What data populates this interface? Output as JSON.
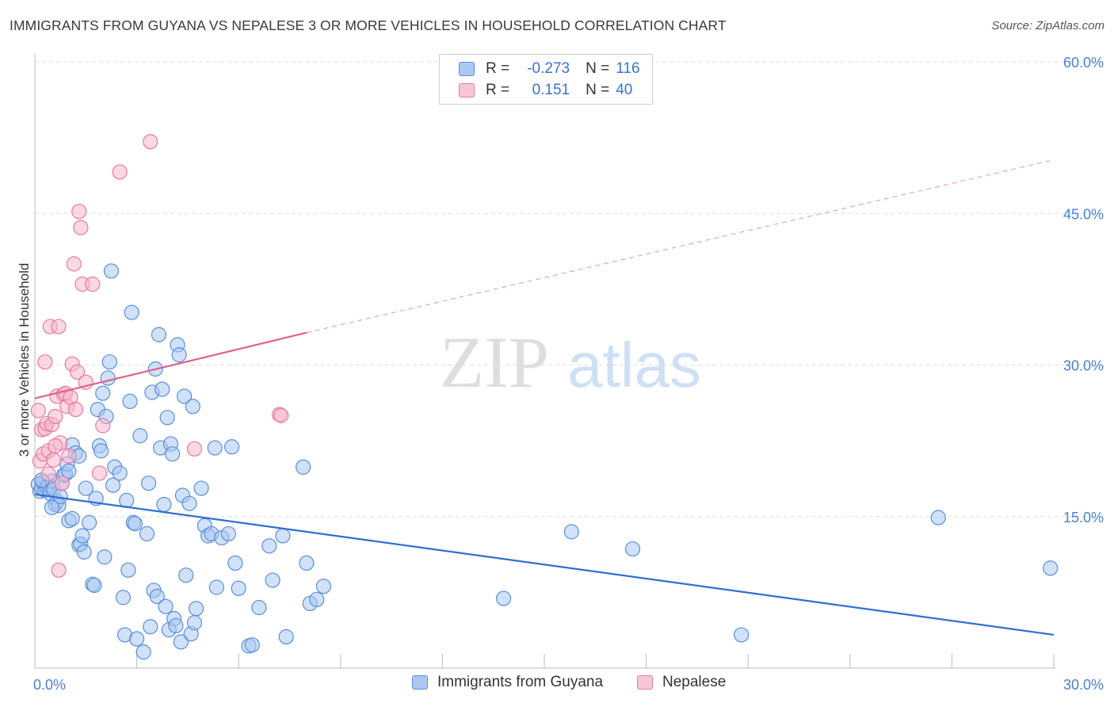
{
  "header": {
    "title": "IMMIGRANTS FROM GUYANA VS NEPALESE 3 OR MORE VEHICLES IN HOUSEHOLD CORRELATION CHART",
    "source": "Source: ZipAtlas.com"
  },
  "watermark": {
    "zip": "ZIP",
    "atlas": "atlas"
  },
  "legend": {
    "rows": [
      {
        "r_label": "R =",
        "r_value": "-0.273",
        "n_label": "N =",
        "n_value": "116"
      },
      {
        "r_label": "R =",
        "r_value": "0.151",
        "n_label": "N =",
        "n_value": "40"
      }
    ]
  },
  "colors": {
    "blue_fill": "#aac8f2",
    "blue_stroke": "#5b8fd6",
    "blue_line": "#2f6fd1",
    "pink_fill": "#f7b8cc",
    "pink_stroke": "#e57aa0",
    "pink_line": "#e06090",
    "grid": "#dcdcdc",
    "tick_text": "#4a7fd6"
  },
  "chart_data": {
    "type": "scatter",
    "ylabel": "3 or more Vehicles in Household",
    "xlim": [
      0,
      30
    ],
    "ylim": [
      0,
      60
    ],
    "x_tick_labels": [
      "0.0%",
      "30.0%"
    ],
    "y_ticks": [
      15,
      30,
      45,
      60
    ],
    "y_tick_labels": [
      "15.0%",
      "30.0%",
      "45.0%",
      "60.0%"
    ],
    "grid": true,
    "series": [
      {
        "name": "Immigrants from Guyana",
        "color": "#aac8f2",
        "trend": {
          "x": [
            0,
            30
          ],
          "y": [
            17.2,
            3.3
          ],
          "dashed_from": null
        },
        "points": [
          [
            0.1,
            18.2
          ],
          [
            0.15,
            17.5
          ],
          [
            0.2,
            17.8
          ],
          [
            0.25,
            18.4
          ],
          [
            0.3,
            17.6
          ],
          [
            0.35,
            17.9
          ],
          [
            0.4,
            18.1
          ],
          [
            0.45,
            17.3
          ],
          [
            0.5,
            18.5
          ],
          [
            0.55,
            17.7
          ],
          [
            0.6,
            16.2
          ],
          [
            0.65,
            16.5
          ],
          [
            0.7,
            16.1
          ],
          [
            0.75,
            17.0
          ],
          [
            0.8,
            18.3
          ],
          [
            0.85,
            19.1
          ],
          [
            0.9,
            19.2
          ],
          [
            0.95,
            20.2
          ],
          [
            1.0,
            19.5
          ],
          [
            1.1,
            22.1
          ],
          [
            1.2,
            21.3
          ],
          [
            1.3,
            21.0
          ],
          [
            0.5,
            15.9
          ],
          [
            1.0,
            14.6
          ],
          [
            1.1,
            14.8
          ],
          [
            1.3,
            12.2
          ],
          [
            1.35,
            12.3
          ],
          [
            1.4,
            13.1
          ],
          [
            1.45,
            11.5
          ],
          [
            1.5,
            17.8
          ],
          [
            1.6,
            14.4
          ],
          [
            1.7,
            8.3
          ],
          [
            1.75,
            8.2
          ],
          [
            1.8,
            16.8
          ],
          [
            1.85,
            25.6
          ],
          [
            1.9,
            22.0
          ],
          [
            1.95,
            21.5
          ],
          [
            2.0,
            27.2
          ],
          [
            2.05,
            11.0
          ],
          [
            2.1,
            24.9
          ],
          [
            2.15,
            28.7
          ],
          [
            2.2,
            30.3
          ],
          [
            2.25,
            39.3
          ],
          [
            2.3,
            18.1
          ],
          [
            2.35,
            19.9
          ],
          [
            2.5,
            19.3
          ],
          [
            2.6,
            7.0
          ],
          [
            2.65,
            3.3
          ],
          [
            2.7,
            16.6
          ],
          [
            2.75,
            9.7
          ],
          [
            2.8,
            26.4
          ],
          [
            2.85,
            35.2
          ],
          [
            2.9,
            14.4
          ],
          [
            2.95,
            14.3
          ],
          [
            3.0,
            2.9
          ],
          [
            3.1,
            23.0
          ],
          [
            3.2,
            1.6
          ],
          [
            3.3,
            13.3
          ],
          [
            3.35,
            18.3
          ],
          [
            3.4,
            4.1
          ],
          [
            3.45,
            27.3
          ],
          [
            3.5,
            7.7
          ],
          [
            3.55,
            29.6
          ],
          [
            3.6,
            7.1
          ],
          [
            3.65,
            33.0
          ],
          [
            3.7,
            21.8
          ],
          [
            3.75,
            27.6
          ],
          [
            3.8,
            16.2
          ],
          [
            3.85,
            6.1
          ],
          [
            3.9,
            24.8
          ],
          [
            3.95,
            3.8
          ],
          [
            4.0,
            22.2
          ],
          [
            4.05,
            21.2
          ],
          [
            4.1,
            4.9
          ],
          [
            4.15,
            4.2
          ],
          [
            4.2,
            32.0
          ],
          [
            4.25,
            31.0
          ],
          [
            4.3,
            2.6
          ],
          [
            4.35,
            17.1
          ],
          [
            4.4,
            26.9
          ],
          [
            4.45,
            9.2
          ],
          [
            4.55,
            16.3
          ],
          [
            4.6,
            3.4
          ],
          [
            4.65,
            25.9
          ],
          [
            4.7,
            4.5
          ],
          [
            4.75,
            5.9
          ],
          [
            4.9,
            17.8
          ],
          [
            5.0,
            14.1
          ],
          [
            5.1,
            13.1
          ],
          [
            5.2,
            13.3
          ],
          [
            5.3,
            21.8
          ],
          [
            5.35,
            8.0
          ],
          [
            5.5,
            12.9
          ],
          [
            5.7,
            13.3
          ],
          [
            5.8,
            21.9
          ],
          [
            5.9,
            10.4
          ],
          [
            6.0,
            7.9
          ],
          [
            6.3,
            2.2
          ],
          [
            6.4,
            2.3
          ],
          [
            6.6,
            6.0
          ],
          [
            6.9,
            12.1
          ],
          [
            7.0,
            8.7
          ],
          [
            7.3,
            13.1
          ],
          [
            7.4,
            3.1
          ],
          [
            7.9,
            19.9
          ],
          [
            8.0,
            10.4
          ],
          [
            8.1,
            6.4
          ],
          [
            8.3,
            6.8
          ],
          [
            8.5,
            8.1
          ],
          [
            13.8,
            6.9
          ],
          [
            15.8,
            13.5
          ],
          [
            17.6,
            11.8
          ],
          [
            20.8,
            3.3
          ],
          [
            26.6,
            14.9
          ],
          [
            29.9,
            9.9
          ],
          [
            0.2,
            18.6
          ]
        ]
      },
      {
        "name": "Nepalese",
        "color": "#f7b8cc",
        "trend": {
          "x": [
            0,
            8.0,
            30
          ],
          "y": [
            26.7,
            33.2,
            50.3
          ],
          "dashed_from": 8.0
        },
        "points": [
          [
            0.1,
            25.5
          ],
          [
            0.15,
            20.5
          ],
          [
            0.2,
            23.6
          ],
          [
            0.25,
            21.2
          ],
          [
            0.3,
            23.7
          ],
          [
            0.3,
            30.3
          ],
          [
            0.35,
            24.2
          ],
          [
            0.4,
            19.2
          ],
          [
            0.4,
            21.5
          ],
          [
            0.45,
            33.8
          ],
          [
            0.5,
            24.1
          ],
          [
            0.55,
            20.6
          ],
          [
            0.6,
            24.9
          ],
          [
            0.65,
            26.9
          ],
          [
            0.7,
            9.7
          ],
          [
            0.7,
            33.8
          ],
          [
            0.75,
            22.3
          ],
          [
            0.8,
            18.3
          ],
          [
            0.85,
            27.1
          ],
          [
            0.9,
            27.2
          ],
          [
            0.95,
            25.9
          ],
          [
            1.0,
            21.0
          ],
          [
            1.05,
            26.8
          ],
          [
            1.1,
            30.1
          ],
          [
            1.15,
            40.0
          ],
          [
            1.2,
            25.6
          ],
          [
            1.25,
            29.3
          ],
          [
            1.3,
            45.2
          ],
          [
            1.35,
            43.6
          ],
          [
            1.4,
            38.0
          ],
          [
            1.5,
            28.3
          ],
          [
            1.7,
            38.0
          ],
          [
            1.9,
            19.3
          ],
          [
            2.0,
            24.0
          ],
          [
            2.5,
            49.1
          ],
          [
            3.4,
            52.1
          ],
          [
            4.7,
            21.7
          ],
          [
            7.2,
            25.1
          ],
          [
            7.25,
            25.0
          ],
          [
            0.6,
            22.0
          ]
        ]
      }
    ]
  }
}
